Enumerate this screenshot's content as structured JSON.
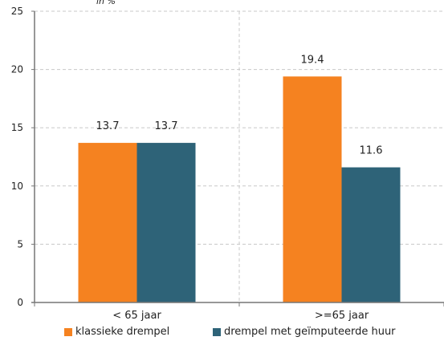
{
  "chart_data": {
    "type": "bar",
    "title": "",
    "unit_fragment": "in %",
    "categories": [
      "< 65 jaar",
      ">=65 jaar"
    ],
    "series": [
      {
        "name": "klassieke drempel",
        "color": "#F58220",
        "values": [
          13.7,
          19.4
        ]
      },
      {
        "name": "drempel met geïmputeerde huur",
        "color": "#2E6378",
        "values": [
          13.7,
          11.6
        ]
      }
    ],
    "data_labels": [
      [
        "13.7",
        "19.4"
      ],
      [
        "13.7",
        "11.6"
      ]
    ],
    "ylim": [
      0,
      25
    ],
    "yticks": [
      0,
      5,
      10,
      15,
      20,
      25
    ],
    "grid": true,
    "legend_position": "bottom"
  }
}
